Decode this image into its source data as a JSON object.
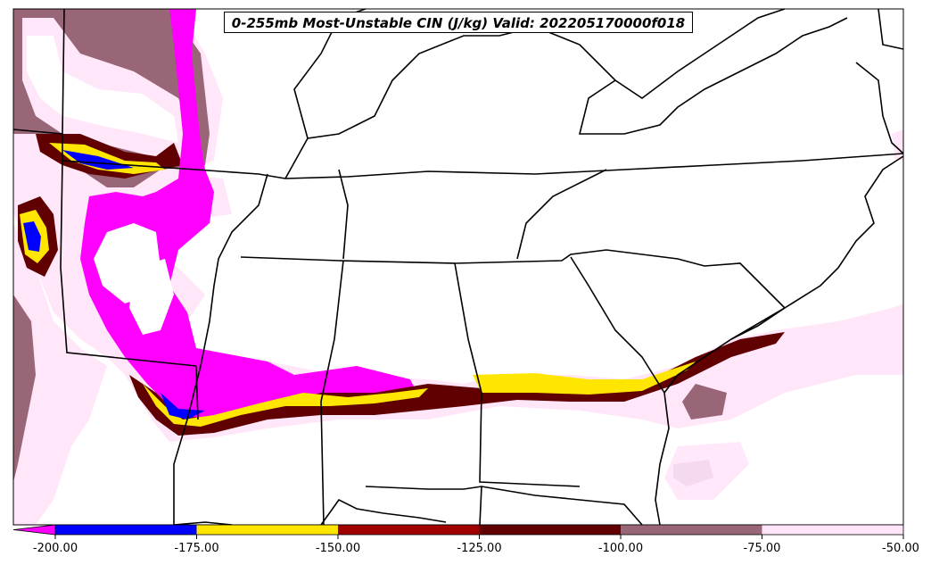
{
  "title": "0-255mb Most-Unstable CIN (J/kg) Valid: 202205170000f018",
  "colorbar": {
    "labels": [
      "-200.00",
      "-175.00",
      "-150.00",
      "-125.00",
      "-100.00",
      "-75.00",
      "-50.00"
    ],
    "colors": [
      "#ff00ff",
      "#0000ff",
      "#ffe600",
      "#a00000",
      "#600000",
      "#996677",
      "#ffe6f8"
    ]
  },
  "legend_colors": {
    "magenta": "#ff00ff",
    "blue": "#0000ff",
    "yellow": "#ffe600",
    "red": "#a00000",
    "darkred": "#600000",
    "mauve": "#996677",
    "pink": "#ffe6f8"
  }
}
